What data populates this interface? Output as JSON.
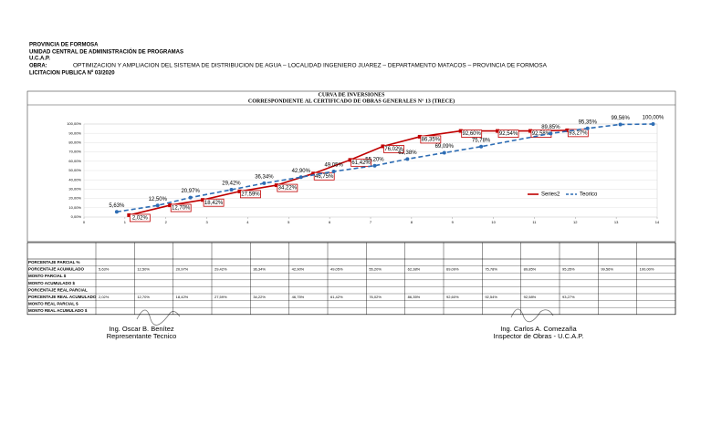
{
  "header": {
    "lines": [
      "PROVINCIA DE FORMOSA",
      "UNIDAD CENTRAL DE ADMINISTRACIÓN DE PROGRAMAS",
      "U.C.A.P."
    ],
    "obra_label": "OBRA:",
    "obra": "OPTIMIZACION Y AMPLIACION DEL SISTEMA DE DISTRIBUCION DE AGUA – LOCALIDAD INGENIERO JUAREZ – DEPARTAMENTO MATACOS – PROVINCIA DE FORMOSA",
    "licitacion": "LICITACION PUBLICA Nº 03/2020"
  },
  "chart_data": {
    "type": "line",
    "title": "CURVA DE INVERSIONES",
    "subtitle": "CORRESPONDIENTE AL CERTIFICADO DE OBRAS GENERALES N° 13 (TRECE)",
    "xlim": [
      0,
      14
    ],
    "xticks": [
      0,
      1,
      2,
      3,
      4,
      5,
      6,
      7,
      8,
      9,
      10,
      11,
      12,
      13,
      14
    ],
    "ylim": [
      0,
      100
    ],
    "yticks": [
      {
        "value": 0,
        "label": "0,00%"
      },
      {
        "value": 10,
        "label": "10,00%"
      },
      {
        "value": 20,
        "label": "20,00%"
      },
      {
        "value": 30,
        "label": "30,00%"
      },
      {
        "value": 40,
        "label": "40,00%"
      },
      {
        "value": 50,
        "label": "50,00%"
      },
      {
        "value": 60,
        "label": "60,00%"
      },
      {
        "value": 70,
        "label": "70,00%"
      },
      {
        "value": 80,
        "label": "80,00%"
      },
      {
        "value": 90,
        "label": "90,00%"
      },
      {
        "value": 100,
        "label": "100,00%"
      }
    ],
    "grid": true,
    "legend": "right",
    "series": [
      {
        "name": "Series2",
        "color": "#c00000",
        "dash": false,
        "boxed": true,
        "x": [
          1.1,
          2.1,
          2.9,
          3.8,
          4.7,
          5.6,
          6.5,
          7.3,
          8.2,
          9.2,
          10.1,
          10.9,
          11.8
        ],
        "values": [
          2.02,
          12.7,
          18.42,
          27.59,
          34.22,
          46.75,
          61.42,
          76.02,
          86.35,
          92.6,
          92.54,
          92.58,
          93.27
        ],
        "value_labels": [
          "2,02%",
          "12,70%",
          "18,42%",
          "27,59%",
          "34,22%",
          "46,75%",
          "61,42%",
          "76,02%",
          "86,35%",
          "92,60%",
          "92,54%",
          "92,58%",
          "93,27%"
        ]
      },
      {
        "name": "Teorico",
        "color": "#2e6db4",
        "dash": true,
        "boxed": false,
        "x": [
          0.8,
          1.8,
          2.6,
          3.6,
          4.4,
          5.3,
          6.1,
          7.1,
          7.9,
          8.8,
          9.7,
          11.4,
          12.3,
          13.1,
          13.9
        ],
        "values": [
          5.63,
          12.5,
          20.97,
          29.42,
          36.34,
          42.9,
          49.05,
          55.2,
          62.38,
          69.09,
          75.78,
          89.85,
          95.35,
          99.56,
          100
        ],
        "value_labels": [
          "5,63%",
          "12,50%",
          "20,97%",
          "29,42%",
          "36,34%",
          "42,90%",
          "49,05%",
          "55,20%",
          "62,38%",
          "69,09%",
          "75,78%",
          "89,85%",
          "95,35%",
          "99,56%",
          "100,00%"
        ]
      }
    ]
  },
  "table": {
    "row_labels": [
      "PORCENTAJE PARCIAL  %",
      "PORCENTAJE ACUMULADO",
      "MONTO PARCIAL  $",
      "MONTO ACUMULADO  $",
      "PORCENTAJE REAL PARCIAL",
      "PORCENTAJE REAL ACUMULADO",
      "MONTO REAL PARCIAL  $",
      "MONTO REAL ACUMULADO  $"
    ],
    "acumulado": [
      "5,63%",
      "12,50%",
      "20,97%",
      "29,42%",
      "36,34%",
      "42,90%",
      "49,05%",
      "55,20%",
      "62,38%",
      "69,09%",
      "75,78%",
      "89,85%",
      "95,35%",
      "99,56%",
      "100,00%"
    ],
    "real_acumulado": [
      "2,02%",
      "12,70%",
      "18,42%",
      "27,59%",
      "34,22%",
      "46,75%",
      "61,42%",
      "76,02%",
      "86,35%",
      "92,60%",
      "92,54%",
      "92,58%",
      "93,27%"
    ]
  },
  "signatures": [
    {
      "name": "Ing. Oscar B. Benítez",
      "role": "Representante Tecnico"
    },
    {
      "name": "Ing. Carlos A. Comezaña",
      "role": "Inspector de Obras - U.C.A.P."
    }
  ]
}
